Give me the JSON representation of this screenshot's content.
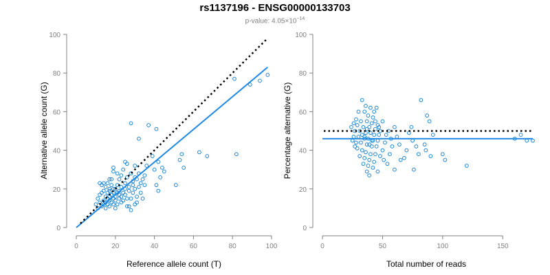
{
  "title": "rs1137196 - ENSG00000133703",
  "subtitle_prefix": "p-value: 4.05×10",
  "subtitle_exp": "−14",
  "chart_data": [
    {
      "type": "scatter",
      "xlabel": "Reference allele count (T)",
      "ylabel": "Alternative allele count (G)",
      "xlim": [
        0,
        100
      ],
      "ylim": [
        0,
        100
      ],
      "xticks": [
        0,
        20,
        40,
        60,
        80,
        100
      ],
      "yticks": [
        0,
        20,
        40,
        60,
        80,
        100
      ],
      "point_color": "#1a87d9",
      "fit_line": {
        "x": [
          0,
          98
        ],
        "y": [
          0,
          83
        ],
        "color": "#1e88e5"
      },
      "reference_line": {
        "x": [
          0,
          98
        ],
        "y": [
          0,
          98
        ],
        "style": "dotted",
        "color": "#000000"
      },
      "points": [
        [
          28,
          54
        ],
        [
          37,
          53
        ],
        [
          41,
          51
        ],
        [
          32,
          46
        ],
        [
          39,
          37
        ],
        [
          42,
          34
        ],
        [
          44,
          31
        ],
        [
          40,
          30
        ],
        [
          45,
          29
        ],
        [
          43,
          26
        ],
        [
          41,
          22
        ],
        [
          42,
          19
        ],
        [
          55,
          31
        ],
        [
          53,
          35
        ],
        [
          54,
          38
        ],
        [
          51,
          22
        ],
        [
          63,
          39
        ],
        [
          67,
          37
        ],
        [
          82,
          38
        ],
        [
          81,
          77
        ],
        [
          89,
          74
        ],
        [
          94,
          76
        ],
        [
          98,
          79
        ],
        [
          10,
          12
        ],
        [
          11,
          15
        ],
        [
          11,
          10
        ],
        [
          12,
          13
        ],
        [
          12,
          17
        ],
        [
          13,
          11
        ],
        [
          13,
          18
        ],
        [
          13,
          22
        ],
        [
          14,
          14
        ],
        [
          14,
          12
        ],
        [
          14,
          19
        ],
        [
          15,
          16
        ],
        [
          15,
          13
        ],
        [
          15,
          10
        ],
        [
          15,
          21
        ],
        [
          16,
          18
        ],
        [
          16,
          15
        ],
        [
          16,
          12
        ],
        [
          16,
          23
        ],
        [
          17,
          16
        ],
        [
          17,
          14
        ],
        [
          17,
          19
        ],
        [
          17,
          11
        ],
        [
          18,
          17
        ],
        [
          18,
          13
        ],
        [
          18,
          22
        ],
        [
          18,
          25
        ],
        [
          19,
          15
        ],
        [
          19,
          18
        ],
        [
          19,
          12
        ],
        [
          19,
          29
        ],
        [
          19,
          31
        ],
        [
          20,
          20
        ],
        [
          20,
          16
        ],
        [
          20,
          14
        ],
        [
          20,
          10
        ],
        [
          21,
          18
        ],
        [
          21,
          22
        ],
        [
          21,
          12
        ],
        [
          22,
          17
        ],
        [
          22,
          15
        ],
        [
          22,
          25
        ],
        [
          22,
          19
        ],
        [
          23,
          16
        ],
        [
          23,
          13
        ],
        [
          23,
          21
        ],
        [
          24,
          14
        ],
        [
          24,
          18
        ],
        [
          24,
          30
        ],
        [
          25,
          20
        ],
        [
          25,
          17
        ],
        [
          25,
          23
        ],
        [
          26,
          15
        ],
        [
          26,
          26
        ],
        [
          26,
          33
        ],
        [
          27,
          19
        ],
        [
          27,
          11
        ],
        [
          27,
          21
        ],
        [
          28,
          28
        ],
        [
          28,
          15
        ],
        [
          28,
          9
        ],
        [
          29,
          24
        ],
        [
          29,
          18
        ],
        [
          29,
          22
        ],
        [
          30,
          20
        ],
        [
          30,
          26
        ],
        [
          30,
          32
        ],
        [
          31,
          16
        ],
        [
          31,
          25
        ],
        [
          31,
          13
        ],
        [
          32,
          21
        ],
        [
          32,
          28
        ],
        [
          33,
          23
        ],
        [
          33,
          18
        ],
        [
          34,
          25
        ],
        [
          34,
          15
        ],
        [
          35,
          22
        ],
        [
          35,
          27
        ],
        [
          36,
          32
        ],
        [
          12,
          23
        ],
        [
          14,
          23
        ],
        [
          17,
          25
        ],
        [
          21,
          28
        ],
        [
          23,
          27
        ],
        [
          25,
          34
        ],
        [
          30,
          12
        ],
        [
          26,
          11
        ],
        [
          19,
          20
        ],
        [
          17,
          20
        ]
      ]
    },
    {
      "type": "scatter",
      "xlabel": "Total number of reads",
      "ylabel": "Percentage alternative (G)",
      "xlim": [
        0,
        175
      ],
      "ylim": [
        0,
        100
      ],
      "xticks": [
        0,
        50,
        100,
        150
      ],
      "yticks": [
        0,
        20,
        40,
        60,
        80,
        100
      ],
      "point_color": "#1a87d9",
      "mean_line": {
        "y": 46,
        "color": "#1e88e5"
      },
      "reference_line": {
        "y": 50,
        "style": "dotted",
        "color": "#000000"
      },
      "points": [
        [
          33,
          66
        ],
        [
          36,
          63
        ],
        [
          40,
          62
        ],
        [
          45,
          62
        ],
        [
          30,
          60
        ],
        [
          35,
          60
        ],
        [
          38,
          58
        ],
        [
          42,
          57
        ],
        [
          28,
          56
        ],
        [
          32,
          55
        ],
        [
          37,
          55
        ],
        [
          41,
          54
        ],
        [
          46,
          53
        ],
        [
          29,
          53
        ],
        [
          34,
          52
        ],
        [
          39,
          52
        ],
        [
          44,
          51
        ],
        [
          48,
          50
        ],
        [
          27,
          50
        ],
        [
          31,
          50
        ],
        [
          36,
          49
        ],
        [
          40,
          49
        ],
        [
          43,
          48
        ],
        [
          47,
          48
        ],
        [
          26,
          47
        ],
        [
          30,
          47
        ],
        [
          35,
          46
        ],
        [
          38,
          46
        ],
        [
          42,
          45
        ],
        [
          46,
          45
        ],
        [
          28,
          44
        ],
        [
          32,
          44
        ],
        [
          37,
          43
        ],
        [
          41,
          42
        ],
        [
          45,
          42
        ],
        [
          29,
          41
        ],
        [
          33,
          40
        ],
        [
          36,
          39
        ],
        [
          40,
          38
        ],
        [
          44,
          38
        ],
        [
          31,
          37
        ],
        [
          35,
          36
        ],
        [
          39,
          35
        ],
        [
          43,
          34
        ],
        [
          34,
          33
        ],
        [
          38,
          32
        ],
        [
          42,
          31
        ],
        [
          37,
          29
        ],
        [
          39,
          27
        ],
        [
          48,
          37
        ],
        [
          50,
          40
        ],
        [
          52,
          44
        ],
        [
          53,
          48
        ],
        [
          55,
          50
        ],
        [
          57,
          46
        ],
        [
          58,
          42
        ],
        [
          56,
          38
        ],
        [
          60,
          52
        ],
        [
          62,
          47
        ],
        [
          64,
          43
        ],
        [
          65,
          35
        ],
        [
          68,
          36
        ],
        [
          70,
          40
        ],
        [
          72,
          49
        ],
        [
          74,
          52
        ],
        [
          75,
          45
        ],
        [
          76,
          30
        ],
        [
          78,
          42
        ],
        [
          80,
          38
        ],
        [
          82,
          66
        ],
        [
          85,
          43
        ],
        [
          86,
          40
        ],
        [
          87,
          58
        ],
        [
          89,
          55
        ],
        [
          90,
          37
        ],
        [
          92,
          48
        ],
        [
          100,
          38
        ],
        [
          102,
          35
        ],
        [
          120,
          32
        ],
        [
          160,
          46
        ],
        [
          165,
          48
        ],
        [
          170,
          45
        ],
        [
          175,
          45
        ],
        [
          25,
          45
        ],
        [
          27,
          42
        ],
        [
          24,
          52
        ],
        [
          26,
          54
        ],
        [
          54,
          33
        ],
        [
          60,
          30
        ],
        [
          50,
          55
        ],
        [
          44,
          55
        ],
        [
          47,
          52
        ],
        [
          51,
          35
        ],
        [
          46,
          29
        ],
        [
          41,
          45
        ],
        [
          33,
          48
        ],
        [
          37,
          51
        ],
        [
          43,
          60
        ],
        [
          39,
          43
        ],
        [
          35,
          47
        ]
      ]
    }
  ]
}
